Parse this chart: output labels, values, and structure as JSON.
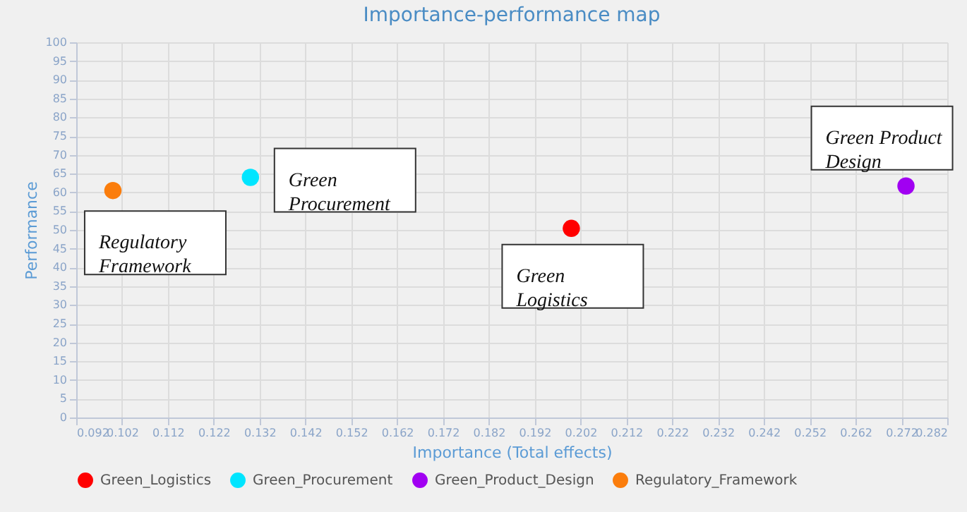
{
  "chart_data": {
    "type": "scatter",
    "title": "Importance-performance map",
    "xlabel": "Importance (Total effects)",
    "ylabel": "Performance",
    "xlim": [
      0.092,
      0.282
    ],
    "xticks": [
      0.092,
      0.102,
      0.112,
      0.122,
      0.132,
      0.142,
      0.152,
      0.162,
      0.172,
      0.182,
      0.192,
      0.202,
      0.212,
      0.222,
      0.232,
      0.242,
      0.252,
      0.262,
      0.272,
      0.282
    ],
    "ylim": [
      0,
      100
    ],
    "yticks": [
      0,
      5,
      10,
      15,
      20,
      25,
      30,
      35,
      40,
      45,
      50,
      55,
      60,
      65,
      70,
      75,
      80,
      85,
      90,
      95,
      100
    ],
    "grid": true,
    "legend": "bottom",
    "marker": "circle",
    "series": [
      {
        "name": "Green_Logistics",
        "color": "#ff0000",
        "x": [
          0.2
        ],
        "values": [
          50.4
        ]
      },
      {
        "name": "Green_Procurement",
        "color": "#00e5ff",
        "x": [
          0.13
        ],
        "values": [
          64
        ]
      },
      {
        "name": "Green_Product_Design",
        "color": "#a100f2",
        "x": [
          0.273
        ],
        "values": [
          61.7
        ]
      },
      {
        "name": "Regulatory_Framework",
        "color": "#fb7d0c",
        "x": [
          0.1
        ],
        "values": [
          60.5
        ]
      }
    ],
    "annotations": [
      {
        "text": "Regulatory\nFramework",
        "x": 0.1,
        "y": 60.5
      },
      {
        "text": "Green\nProcurement",
        "x": 0.13,
        "y": 64
      },
      {
        "text": "Green\nLogistics",
        "x": 0.2,
        "y": 50.4
      },
      {
        "text": "Green Product\nDesign",
        "x": 0.273,
        "y": 61.7
      }
    ]
  }
}
